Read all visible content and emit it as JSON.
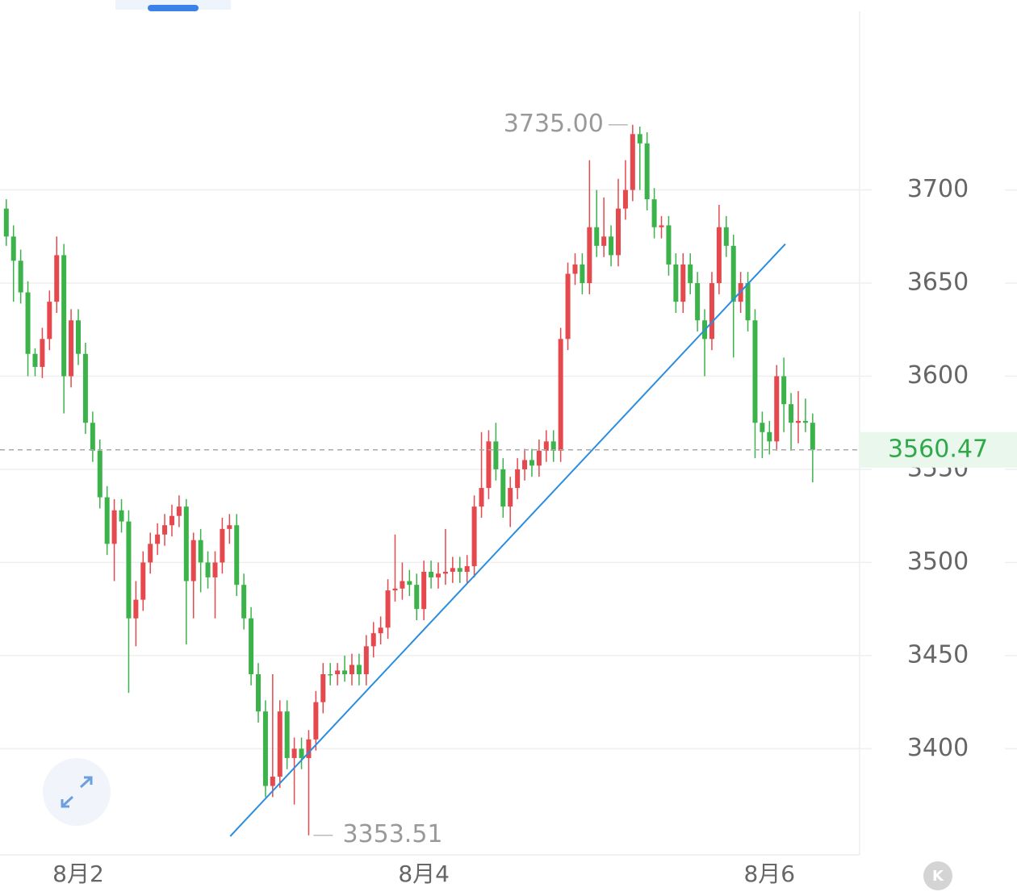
{
  "chart_data": {
    "type": "candlestick",
    "up_color": "#e5484d",
    "down_color": "#3cb34a",
    "ylim": [
      3343,
      3802
    ],
    "yticks": [
      3400,
      3450,
      3500,
      3550,
      3600,
      3650,
      3700
    ],
    "grid": true,
    "categories": [
      null,
      null,
      null,
      null,
      null,
      null,
      null,
      null,
      null,
      null,
      "8月2",
      null,
      null,
      null,
      null,
      null,
      null,
      null,
      null,
      null,
      null,
      null,
      null,
      null,
      null,
      null,
      null,
      null,
      null,
      null,
      null,
      null,
      null,
      null,
      null,
      null,
      null,
      null,
      null,
      null,
      null,
      null,
      null,
      null,
      null,
      null,
      null,
      null,
      null,
      null,
      null,
      null,
      null,
      null,
      null,
      null,
      null,
      null,
      "8月4",
      null,
      null,
      null,
      null,
      null,
      null,
      null,
      null,
      null,
      null,
      null,
      null,
      null,
      null,
      null,
      null,
      null,
      null,
      null,
      null,
      null,
      null,
      null,
      null,
      null,
      null,
      null,
      null,
      null,
      null,
      null,
      null,
      null,
      null,
      null,
      null,
      null,
      null,
      null,
      null,
      null,
      null,
      null,
      null,
      null,
      null,
      null,
      "8月6",
      null,
      null,
      null,
      null,
      null,
      null
    ],
    "ohlc": [
      [
        3690,
        3695,
        3670,
        3675
      ],
      [
        3675,
        3681,
        3640,
        3662
      ],
      [
        3662,
        3668,
        3639,
        3645
      ],
      [
        3645,
        3651,
        3600,
        3612
      ],
      [
        3612,
        3615,
        3600,
        3605
      ],
      [
        3605,
        3626,
        3599,
        3620
      ],
      [
        3620,
        3646,
        3614,
        3640
      ],
      [
        3640,
        3675,
        3634,
        3665
      ],
      [
        3665,
        3671,
        3580,
        3600
      ],
      [
        3600,
        3636,
        3594,
        3630
      ],
      [
        3630,
        3636,
        3606,
        3612
      ],
      [
        3612,
        3618,
        3569,
        3575
      ],
      [
        3575,
        3581,
        3554,
        3560
      ],
      [
        3560,
        3566,
        3529,
        3535
      ],
      [
        3535,
        3541,
        3504,
        3510
      ],
      [
        3510,
        3534,
        3490,
        3528
      ],
      [
        3528,
        3534,
        3516,
        3522
      ],
      [
        3522,
        3528,
        3430,
        3470
      ],
      [
        3470,
        3490,
        3455,
        3480
      ],
      [
        3480,
        3506,
        3474,
        3500
      ],
      [
        3500,
        3516,
        3494,
        3510
      ],
      [
        3510,
        3521,
        3504,
        3515
      ],
      [
        3515,
        3526,
        3509,
        3520
      ],
      [
        3520,
        3531,
        3514,
        3525
      ],
      [
        3525,
        3536,
        3519,
        3530
      ],
      [
        3530,
        3534,
        3456,
        3490
      ],
      [
        3490,
        3516,
        3470,
        3512
      ],
      [
        3512,
        3518,
        3484,
        3500
      ],
      [
        3500,
        3506,
        3486,
        3492
      ],
      [
        3492,
        3506,
        3470,
        3500
      ],
      [
        3500,
        3524,
        3494,
        3518
      ],
      [
        3518,
        3526,
        3510,
        3520
      ],
      [
        3520,
        3526,
        3482,
        3488
      ],
      [
        3488,
        3494,
        3464,
        3470
      ],
      [
        3470,
        3476,
        3434,
        3440
      ],
      [
        3440,
        3446,
        3414,
        3420
      ],
      [
        3420,
        3426,
        3374,
        3380
      ],
      [
        3380,
        3440,
        3374,
        3385
      ],
      [
        3385,
        3426,
        3379,
        3420
      ],
      [
        3420,
        3426,
        3389,
        3395
      ],
      [
        3395,
        3406,
        3370,
        3400
      ],
      [
        3400,
        3406,
        3389,
        3395
      ],
      [
        3395,
        3410,
        3353.51,
        3405
      ],
      [
        3405,
        3431,
        3399,
        3425
      ],
      [
        3425,
        3446,
        3419,
        3440
      ],
      [
        3440,
        3446,
        3434,
        3440
      ],
      [
        3440,
        3446,
        3434,
        3442
      ],
      [
        3442,
        3450,
        3436,
        3440
      ],
      [
        3440,
        3451,
        3434,
        3445
      ],
      [
        3445,
        3451,
        3434,
        3440
      ],
      [
        3440,
        3461,
        3434,
        3455
      ],
      [
        3455,
        3468,
        3449,
        3462
      ],
      [
        3462,
        3471,
        3456,
        3465
      ],
      [
        3465,
        3491,
        3459,
        3485
      ],
      [
        3485,
        3515,
        3479,
        3486
      ],
      [
        3486,
        3500,
        3480,
        3490
      ],
      [
        3490,
        3496,
        3482,
        3488
      ],
      [
        3488,
        3494,
        3469,
        3475
      ],
      [
        3475,
        3501,
        3469,
        3495
      ],
      [
        3495,
        3501,
        3486,
        3492
      ],
      [
        3492,
        3500,
        3486,
        3494
      ],
      [
        3494,
        3518,
        3488,
        3495
      ],
      [
        3495,
        3503,
        3489,
        3497
      ],
      [
        3497,
        3503,
        3489,
        3495
      ],
      [
        3495,
        3504,
        3489,
        3498
      ],
      [
        3498,
        3536,
        3492,
        3530
      ],
      [
        3530,
        3570,
        3524,
        3540
      ],
      [
        3540,
        3571,
        3534,
        3565
      ],
      [
        3565,
        3575,
        3544,
        3550
      ],
      [
        3550,
        3556,
        3524,
        3530
      ],
      [
        3530,
        3546,
        3519,
        3540
      ],
      [
        3540,
        3556,
        3534,
        3550
      ],
      [
        3550,
        3561,
        3544,
        3555
      ],
      [
        3555,
        3561,
        3546,
        3552
      ],
      [
        3552,
        3566,
        3546,
        3560
      ],
      [
        3560,
        3571,
        3554,
        3565
      ],
      [
        3565,
        3571,
        3554,
        3560
      ],
      [
        3560,
        3626,
        3554,
        3620
      ],
      [
        3620,
        3661,
        3614,
        3655
      ],
      [
        3655,
        3666,
        3649,
        3660
      ],
      [
        3660,
        3666,
        3644,
        3650
      ],
      [
        3650,
        3716,
        3644,
        3680
      ],
      [
        3680,
        3700,
        3664,
        3670
      ],
      [
        3670,
        3696,
        3664,
        3675
      ],
      [
        3675,
        3681,
        3659,
        3665
      ],
      [
        3665,
        3706,
        3659,
        3690
      ],
      [
        3690,
        3716,
        3684,
        3700
      ],
      [
        3700,
        3735,
        3694,
        3730
      ],
      [
        3730,
        3734,
        3700,
        3725
      ],
      [
        3725,
        3731,
        3689,
        3695
      ],
      [
        3695,
        3701,
        3674,
        3680
      ],
      [
        3680,
        3686,
        3674,
        3681
      ],
      [
        3681,
        3686,
        3654,
        3660
      ],
      [
        3660,
        3666,
        3634,
        3640
      ],
      [
        3640,
        3666,
        3634,
        3660
      ],
      [
        3660,
        3666,
        3644,
        3650
      ],
      [
        3650,
        3656,
        3624,
        3630
      ],
      [
        3630,
        3636,
        3600,
        3620
      ],
      [
        3620,
        3656,
        3614,
        3650
      ],
      [
        3650,
        3692,
        3644,
        3680
      ],
      [
        3680,
        3686,
        3664,
        3670
      ],
      [
        3670,
        3676,
        3610,
        3640
      ],
      [
        3640,
        3656,
        3634,
        3650
      ],
      [
        3650,
        3656,
        3624,
        3630
      ],
      [
        3630,
        3636,
        3556,
        3575
      ],
      [
        3575,
        3581,
        3556,
        3570
      ],
      [
        3570,
        3576,
        3558,
        3565
      ],
      [
        3565,
        3606,
        3560,
        3600
      ],
      [
        3600,
        3610,
        3570,
        3585
      ],
      [
        3585,
        3591,
        3560,
        3575
      ],
      [
        3575,
        3592,
        3564,
        3576
      ],
      [
        3576,
        3588,
        3570,
        3575
      ],
      [
        3575,
        3580,
        3543,
        3560.47
      ]
    ],
    "high_label": {
      "value": 3735,
      "label": "3735.00"
    },
    "low_label": {
      "value": 3353.51,
      "label": "3353.51"
    },
    "last_price": {
      "value": 3560.47,
      "label": "3560.47"
    },
    "trendline": {
      "x": [
        31.1,
        108.2
      ],
      "y": [
        3353,
        3671
      ],
      "color": "#2b8de0"
    }
  }
}
